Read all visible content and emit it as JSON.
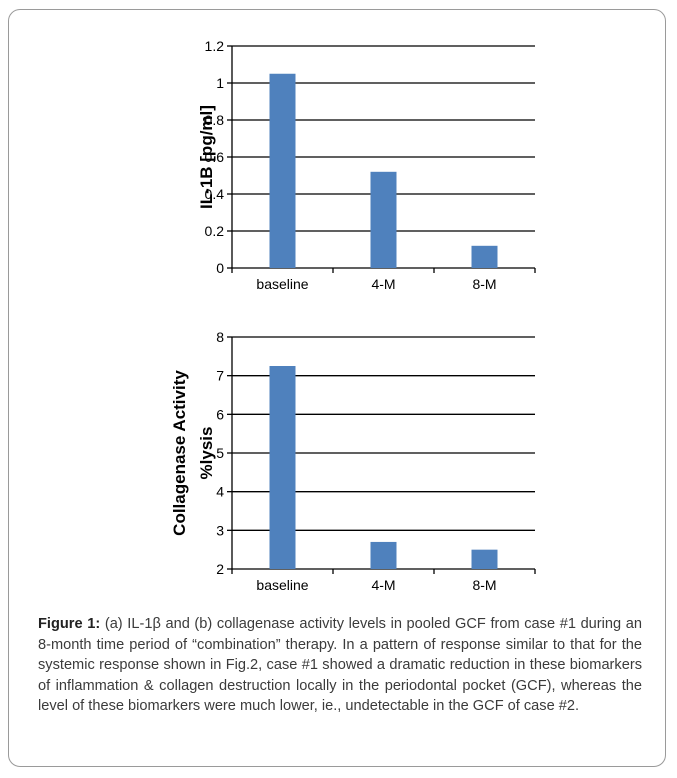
{
  "chart_data": [
    {
      "type": "bar",
      "categories": [
        "baseline",
        "4-M",
        "8-M"
      ],
      "values": [
        1.05,
        0.52,
        0.12
      ],
      "ylabel": "IL-1B [pg/ml]",
      "ylim": [
        0,
        1.2
      ],
      "yticks": [
        "0",
        "0.2",
        "0.4",
        "0.6",
        "0.8",
        "1",
        "1.2"
      ],
      "grid": true,
      "color": "#4f81bd"
    },
    {
      "type": "bar",
      "categories": [
        "baseline",
        "4-M",
        "8-M"
      ],
      "values": [
        7.25,
        2.7,
        2.5
      ],
      "ylabel": [
        "Collagenase Activity",
        "%lysis"
      ],
      "ylim": [
        2,
        8
      ],
      "yticks": [
        "2",
        "3",
        "4",
        "5",
        "6",
        "7",
        "8"
      ],
      "grid": true,
      "color": "#4f81bd"
    }
  ],
  "caption": {
    "label": "Figure 1:",
    "text": " (a) IL-1β and (b) collagenase activity levels in pooled GCF from case #1 during an 8-month time period of “combination” therapy. In a pattern of response similar to that for the systemic response shown in Fig.2, case #1 showed a dramatic reduction in these biomarkers of inflammation & collagen destruction locally in the periodontal pocket (GCF), whereas the level of these biomarkers were much lower, ie., undetectable in the GCF of case #2."
  }
}
